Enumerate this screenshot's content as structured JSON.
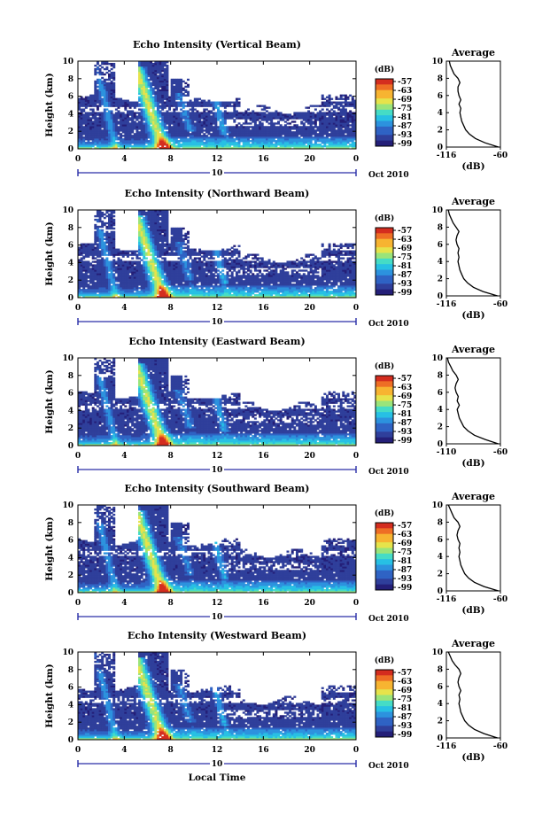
{
  "chart_data": [
    {
      "type": "heatmap",
      "title": "Echo Intensity (Vertical Beam)",
      "ylabel": "Height (km)",
      "x_ticks": [
        "0",
        "4",
        "8",
        "12",
        "16",
        "20",
        "0"
      ],
      "y_ticks": [
        "0",
        "2",
        "4",
        "6",
        "8",
        "10"
      ],
      "xlim": [
        0,
        24
      ],
      "ylim": [
        0,
        10
      ],
      "date_label": "10",
      "month_year": "Oct 2010",
      "colorbar": {
        "unit": "(dB)",
        "ticks": [
          "-57",
          "-63",
          "-69",
          "-75",
          "-81",
          "-87",
          "-93",
          "-99"
        ]
      },
      "average_profile": {
        "title": "Average",
        "xlabel": "(dB)",
        "xlim_labels": [
          "-116",
          "-60"
        ],
        "xlim": [
          -116,
          -60
        ],
        "height_km": [
          0,
          0.5,
          1,
          1.5,
          2,
          2.5,
          3,
          3.5,
          4,
          4.5,
          5,
          5.5,
          6,
          6.5,
          7,
          7.5,
          8,
          8.5,
          9,
          9.5,
          10
        ],
        "db": [
          -62,
          -76,
          -86,
          -92,
          -96,
          -98,
          -100,
          -101,
          -102,
          -101,
          -103,
          -101,
          -103,
          -104,
          -104,
          -102,
          -104,
          -108,
          -110,
          -112,
          -113
        ]
      }
    },
    {
      "type": "heatmap",
      "title": "Echo Intensity (Northward Beam)",
      "ylabel": "Height (km)",
      "x_ticks": [
        "0",
        "4",
        "8",
        "12",
        "16",
        "20",
        "0"
      ],
      "y_ticks": [
        "0",
        "2",
        "4",
        "6",
        "8",
        "10"
      ],
      "xlim": [
        0,
        24
      ],
      "ylim": [
        0,
        10
      ],
      "date_label": "10",
      "month_year": "Oct 2010",
      "colorbar": {
        "unit": "(dB)",
        "ticks": [
          "-57",
          "-63",
          "-69",
          "-75",
          "-81",
          "-87",
          "-93",
          "-99"
        ]
      },
      "average_profile": {
        "title": "Average",
        "xlabel": "(dB)",
        "xlim_labels": [
          "-116",
          "-60"
        ],
        "xlim": [
          -116,
          -60
        ],
        "height_km": [
          0,
          0.5,
          1,
          1.5,
          2,
          2.5,
          3,
          3.5,
          4,
          4.5,
          5,
          5.5,
          6,
          6.5,
          7,
          7.5,
          8,
          8.5,
          9,
          9.5,
          10
        ],
        "db": [
          -63,
          -78,
          -88,
          -94,
          -98,
          -100,
          -102,
          -103,
          -104,
          -103,
          -104,
          -103,
          -105,
          -106,
          -105,
          -103,
          -106,
          -109,
          -111,
          -113,
          -114
        ]
      }
    },
    {
      "type": "heatmap",
      "title": "Echo Intensity (Eastward Beam)",
      "ylabel": "Height (km)",
      "x_ticks": [
        "0",
        "4",
        "8",
        "12",
        "16",
        "20",
        "0"
      ],
      "y_ticks": [
        "0",
        "2",
        "4",
        "6",
        "8",
        "10"
      ],
      "xlim": [
        0,
        24
      ],
      "ylim": [
        0,
        10
      ],
      "date_label": "10",
      "month_year": "Oct 2010",
      "colorbar": {
        "unit": "(dB)",
        "ticks": [
          "-57",
          "-63",
          "-69",
          "-75",
          "-81",
          "-87",
          "-93",
          "-99"
        ]
      },
      "average_profile": {
        "title": "Average",
        "xlabel": "(dB)",
        "xlim_labels": [
          "-110",
          "-60"
        ],
        "xlim": [
          -110,
          -60
        ],
        "height_km": [
          0,
          0.5,
          1,
          1.5,
          2,
          2.5,
          3,
          3.5,
          4,
          4.5,
          5,
          5.5,
          6,
          6.5,
          7,
          7.5,
          8,
          8.5,
          9,
          9.5,
          10
        ],
        "db": [
          -62,
          -74,
          -84,
          -90,
          -94,
          -96,
          -98,
          -99,
          -100,
          -98,
          -100,
          -99,
          -101,
          -102,
          -101,
          -99,
          -101,
          -104,
          -106,
          -108,
          -109
        ]
      }
    },
    {
      "type": "heatmap",
      "title": "Echo Intensity (Southward Beam)",
      "ylabel": "Height (km)",
      "x_ticks": [
        "0",
        "4",
        "8",
        "12",
        "16",
        "20",
        "0"
      ],
      "y_ticks": [
        "0",
        "2",
        "4",
        "6",
        "8",
        "10"
      ],
      "xlim": [
        0,
        24
      ],
      "ylim": [
        0,
        10
      ],
      "date_label": "10",
      "month_year": "Oct 2010",
      "colorbar": {
        "unit": "(dB)",
        "ticks": [
          "-57",
          "-63",
          "-69",
          "-75",
          "-81",
          "-87",
          "-93",
          "-99"
        ]
      },
      "average_profile": {
        "title": "Average",
        "xlabel": "(dB)",
        "xlim_labels": [
          "-116",
          "-60"
        ],
        "xlim": [
          -116,
          -60
        ],
        "height_km": [
          0,
          0.5,
          1,
          1.5,
          2,
          2.5,
          3,
          3.5,
          4,
          4.5,
          5,
          5.5,
          6,
          6.5,
          7,
          7.5,
          8,
          8.5,
          9,
          9.5,
          10
        ],
        "db": [
          -62,
          -77,
          -87,
          -93,
          -97,
          -99,
          -101,
          -102,
          -103,
          -102,
          -103,
          -102,
          -104,
          -105,
          -104,
          -102,
          -104,
          -108,
          -110,
          -112,
          -114
        ]
      }
    },
    {
      "type": "heatmap",
      "title": "Echo Intensity (Westward Beam)",
      "ylabel": "Height (km)",
      "xlabel": "Local Time",
      "x_ticks": [
        "0",
        "4",
        "8",
        "12",
        "16",
        "20",
        "0"
      ],
      "y_ticks": [
        "0",
        "2",
        "4",
        "6",
        "8",
        "10"
      ],
      "xlim": [
        0,
        24
      ],
      "ylim": [
        0,
        10
      ],
      "date_label": "10",
      "month_year": "Oct 2010",
      "colorbar": {
        "unit": "(dB)",
        "ticks": [
          "-57",
          "-63",
          "-69",
          "-75",
          "-81",
          "-87",
          "-93",
          "-99"
        ]
      },
      "average_profile": {
        "title": "Average",
        "xlabel": "(dB)",
        "xlim_labels": [
          "-116",
          "-60"
        ],
        "xlim": [
          -116,
          -60
        ],
        "height_km": [
          0,
          0.5,
          1,
          1.5,
          2,
          2.5,
          3,
          3.5,
          4,
          4.5,
          5,
          5.5,
          6,
          6.5,
          7,
          7.5,
          8,
          8.5,
          9,
          9.5,
          10
        ],
        "db": [
          -63,
          -77,
          -87,
          -93,
          -97,
          -99,
          -101,
          -102,
          -103,
          -102,
          -103,
          -101,
          -103,
          -104,
          -103,
          -101,
          -103,
          -107,
          -110,
          -112,
          -114
        ]
      }
    }
  ],
  "colors": {
    "background_fill": "#2f3b8f",
    "colormap": [
      "#241f78",
      "#2f3f9b",
      "#2f63c4",
      "#2c92de",
      "#27c0e4",
      "#45dcc6",
      "#9ae47a",
      "#e6e34b",
      "#f7b431",
      "#ee6e25",
      "#d42d1f"
    ],
    "accent_timeline": "#2a2fa8"
  }
}
